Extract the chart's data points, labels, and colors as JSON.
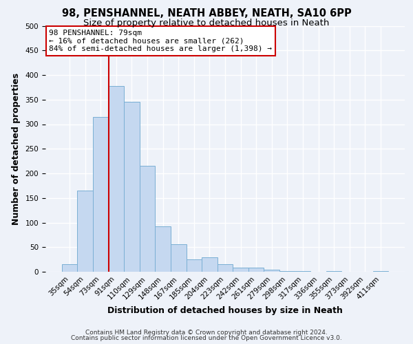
{
  "title": "98, PENSHANNEL, NEATH ABBEY, NEATH, SA10 6PP",
  "subtitle": "Size of property relative to detached houses in Neath",
  "xlabel": "Distribution of detached houses by size in Neath",
  "ylabel": "Number of detached properties",
  "bar_labels": [
    "35sqm",
    "54sqm",
    "73sqm",
    "91sqm",
    "110sqm",
    "129sqm",
    "148sqm",
    "167sqm",
    "185sqm",
    "204sqm",
    "223sqm",
    "242sqm",
    "261sqm",
    "279sqm",
    "298sqm",
    "317sqm",
    "336sqm",
    "355sqm",
    "373sqm",
    "392sqm",
    "411sqm"
  ],
  "bar_values": [
    16,
    165,
    314,
    378,
    345,
    216,
    93,
    56,
    25,
    29,
    15,
    8,
    8,
    4,
    2,
    1,
    0,
    1,
    0,
    0,
    1
  ],
  "bar_color": "#c5d8f0",
  "bar_edge_color": "#7aafd4",
  "vline_color": "#cc0000",
  "annotation_text": "98 PENSHANNEL: 79sqm\n← 16% of detached houses are smaller (262)\n84% of semi-detached houses are larger (1,398) →",
  "annotation_box_facecolor": "#ffffff",
  "annotation_box_edgecolor": "#cc0000",
  "ylim": [
    0,
    500
  ],
  "yticks": [
    0,
    50,
    100,
    150,
    200,
    250,
    300,
    350,
    400,
    450,
    500
  ],
  "footer_line1": "Contains HM Land Registry data © Crown copyright and database right 2024.",
  "footer_line2": "Contains public sector information licensed under the Open Government Licence v3.0.",
  "bg_color": "#eef2f9",
  "plot_bg_color": "#eef2f9",
  "title_fontsize": 10.5,
  "subtitle_fontsize": 9.5,
  "axis_label_fontsize": 9,
  "tick_fontsize": 7.5,
  "annotation_fontsize": 8,
  "footer_fontsize": 6.5,
  "grid_color": "#ffffff"
}
